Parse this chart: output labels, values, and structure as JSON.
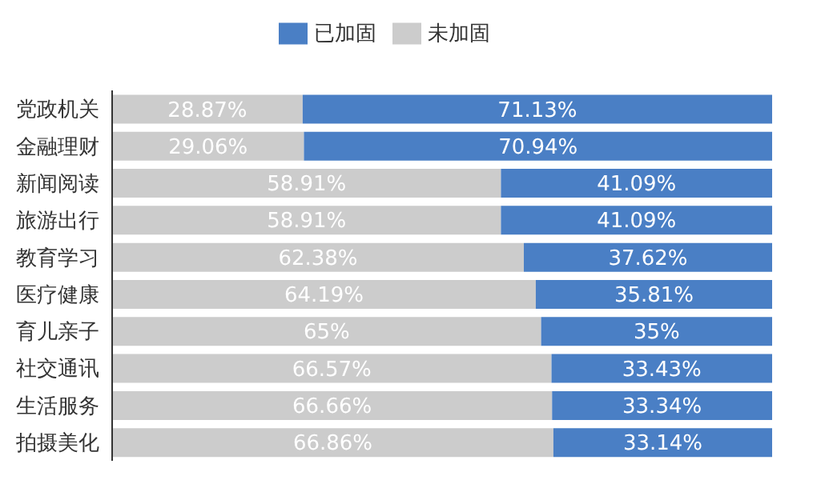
{
  "chart_data": {
    "type": "bar",
    "orientation": "horizontal",
    "stacked": true,
    "categories": [
      "党政机关",
      "金融理财",
      "新闻阅读",
      "旅游出行",
      "教育学习",
      "医疗健康",
      "育儿亲子",
      "社交通讯",
      "生活服务",
      "拍摄美化"
    ],
    "series": [
      {
        "name": "未加固",
        "color": "#cccccc",
        "values": [
          28.87,
          29.06,
          58.91,
          58.91,
          62.38,
          64.19,
          65,
          66.57,
          66.66,
          66.86
        ],
        "value_labels": [
          "28.87%",
          "29.06%",
          "58.91%",
          "58.91%",
          "62.38%",
          "64.19%",
          "65%",
          "66.57%",
          "66.66%",
          "66.86%"
        ]
      },
      {
        "name": "已加固",
        "color": "#4a7fc5",
        "values": [
          71.13,
          70.94,
          41.09,
          41.09,
          37.62,
          35.81,
          35,
          33.43,
          33.34,
          33.14
        ],
        "value_labels": [
          "71.13%",
          "70.94%",
          "41.09%",
          "41.09%",
          "37.62%",
          "35.81%",
          "35%",
          "33.43%",
          "33.34%",
          "33.14%"
        ]
      }
    ],
    "xlim": [
      0,
      100
    ],
    "tick_labels": "y",
    "legend": "top",
    "grid": false
  }
}
